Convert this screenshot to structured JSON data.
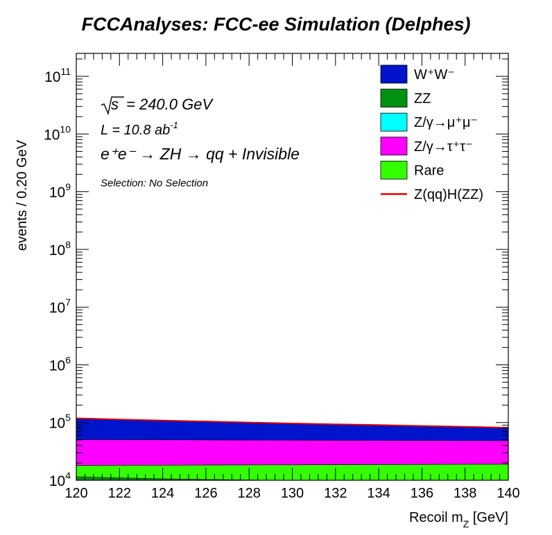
{
  "title": "FCCAnalyses: FCC-ee Simulation (Delphes)",
  "annotations": {
    "sqrt_s": "= 240.0 GeV",
    "lumi": "L = 10.8 ab",
    "lumi_exp": "-1",
    "process": "e⁺e⁻ → ZH → qq + Invisible",
    "selection": "Selection: No Selection"
  },
  "colors": {
    "WW": "#0014cc",
    "ZZ": "#009111",
    "Zmumu": "#00ffff",
    "Ztautau": "#ff00ff",
    "Rare": "#33ff00",
    "signal": "#dd0000"
  },
  "chart_data": {
    "type": "area",
    "stacked": true,
    "yscale": "log",
    "xlim": [
      120,
      140
    ],
    "ylim": [
      10000,
      250000000000
    ],
    "xlabel": "Recoil m_Z [GeV]",
    "ylabel": "events / 0.20 GeV",
    "x_ticks": [
      "120",
      "122",
      "124",
      "126",
      "128",
      "130",
      "132",
      "134",
      "136",
      "138",
      "140"
    ],
    "y_ticks": [
      {
        "value": 10000,
        "base": "10",
        "exp": "4"
      },
      {
        "value": 100000,
        "base": "10",
        "exp": "5"
      },
      {
        "value": 1000000,
        "base": "10",
        "exp": "6"
      },
      {
        "value": 10000000,
        "base": "10",
        "exp": "7"
      },
      {
        "value": 100000000,
        "base": "10",
        "exp": "8"
      },
      {
        "value": 1000000000,
        "base": "10",
        "exp": "9"
      },
      {
        "value": 10000000000,
        "base": "10",
        "exp": "10"
      },
      {
        "value": 100000000000,
        "base": "10",
        "exp": "11"
      }
    ],
    "legend_position": "top-right",
    "legend": [
      {
        "key": "WW",
        "label": "W⁺W⁻",
        "kind": "box"
      },
      {
        "key": "ZZ",
        "label": "ZZ",
        "kind": "box"
      },
      {
        "key": "Zmumu",
        "label": "Z/γ→μ⁺μ⁻",
        "kind": "box"
      },
      {
        "key": "Ztautau",
        "label": "Z/γ→τ⁺τ⁻",
        "kind": "box"
      },
      {
        "key": "Rare",
        "label": "Rare",
        "kind": "box"
      },
      {
        "key": "signal",
        "label": "Z(qq)H(ZZ)",
        "kind": "line"
      }
    ],
    "x": [
      120,
      122,
      124,
      126,
      128,
      130,
      132,
      134,
      136,
      138,
      140
    ],
    "stack_tops": [
      {
        "key": "ZZ",
        "values": [
          11500,
          11000,
          10600,
          10300,
          10100,
          9900,
          9800,
          9700,
          9600,
          9500,
          9400
        ]
      },
      {
        "key": "Rare",
        "values": [
          18000,
          18100,
          18200,
          18300,
          18400,
          18500,
          18600,
          18700,
          18800,
          18900,
          19000
        ]
      },
      {
        "key": "Zmumu",
        "values": [
          18000,
          18100,
          18200,
          18300,
          18400,
          18500,
          18600,
          18700,
          18800,
          18900,
          19000
        ]
      },
      {
        "key": "Ztautau",
        "values": [
          50500,
          50300,
          50100,
          49800,
          49600,
          49400,
          49200,
          49000,
          48800,
          48600,
          48400
        ]
      },
      {
        "key": "WW",
        "values": [
          118000,
          113000,
          108000,
          104000,
          100000,
          96000,
          93000,
          90000,
          87000,
          84000,
          81000
        ]
      }
    ],
    "signal_top": [
      118500,
      113500,
      108500,
      104500,
      100500,
      96500,
      93500,
      90500,
      87500,
      84500,
      81500
    ]
  }
}
